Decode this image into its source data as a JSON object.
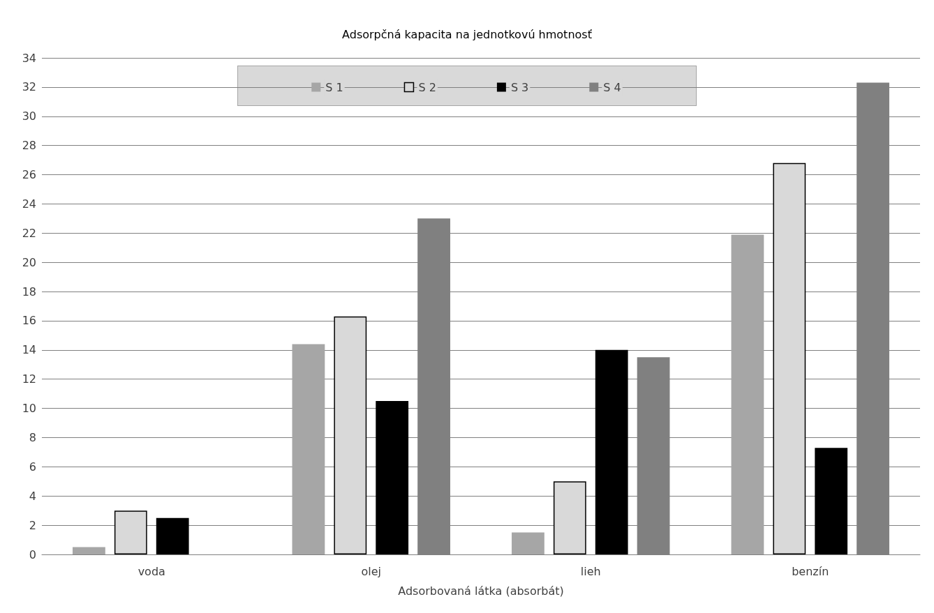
{
  "chart_data": {
    "type": "bar",
    "title": "Adsorpčná kapacita na jednotkovú hmotnosť",
    "xlabel": "Adsorbovaná látka (absorbát)",
    "categories": [
      "voda",
      "olej",
      "lieh",
      "benzín"
    ],
    "series": [
      {
        "name": "S 1",
        "color": "#a6a6a6",
        "values": [
          0.5,
          14.4,
          1.5,
          21.9
        ]
      },
      {
        "name": "S 2",
        "color": "#d9d9d9",
        "values": [
          3.0,
          16.3,
          5.0,
          26.8
        ]
      },
      {
        "name": "S 3",
        "color": "#000000",
        "values": [
          2.5,
          10.5,
          14.0,
          7.3
        ]
      },
      {
        "name": "S 4",
        "color": "#808080",
        "values": [
          null,
          23.0,
          13.5,
          32.3
        ]
      }
    ],
    "ylim": [
      0,
      34
    ],
    "yticks": [
      0,
      2,
      4,
      6,
      8,
      10,
      12,
      14,
      16,
      18,
      20,
      22,
      24,
      26,
      28,
      30,
      32,
      34
    ],
    "grid": "y",
    "legend": "top"
  }
}
